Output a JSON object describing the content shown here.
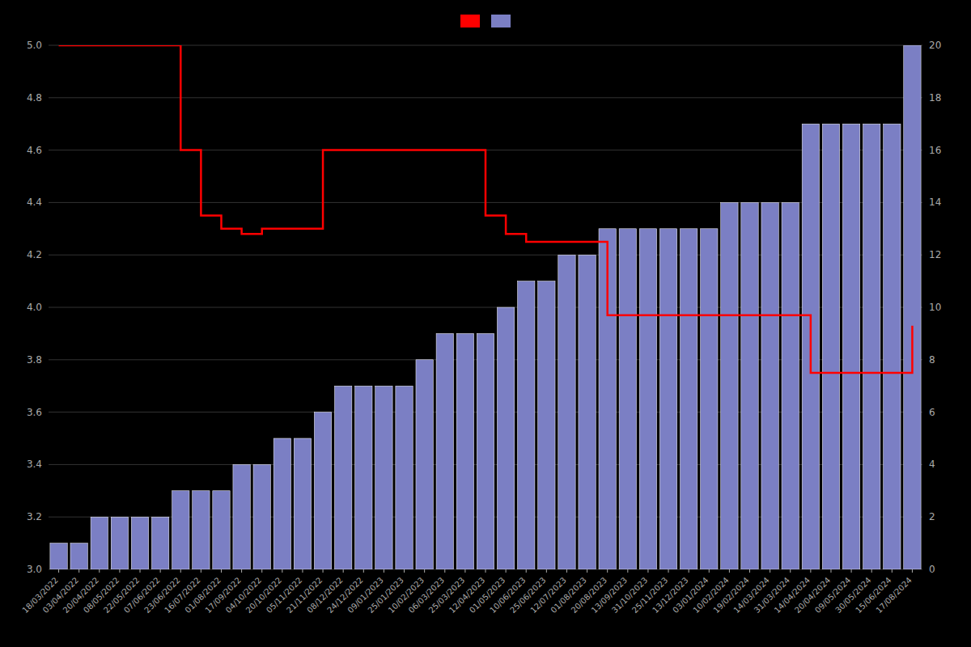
{
  "chart_data": {
    "type": "bar",
    "categories": [
      "18/03/2022",
      "03/04/2022",
      "20/04/2022",
      "08/05/2022",
      "22/05/2022",
      "07/06/2022",
      "23/06/2022",
      "16/07/2022",
      "01/08/2022",
      "17/09/2022",
      "04/10/2022",
      "20/10/2022",
      "05/11/2022",
      "21/11/2022",
      "08/12/2022",
      "24/12/2022",
      "09/01/2023",
      "25/01/2023",
      "10/02/2023",
      "06/03/2023",
      "25/03/2023",
      "12/04/2023",
      "01/05/2023",
      "10/06/2023",
      "25/06/2023",
      "12/07/2023",
      "01/08/2023",
      "20/08/2023",
      "13/09/2023",
      "31/10/2023",
      "25/11/2023",
      "13/12/2023",
      "03/01/2024",
      "10/02/2024",
      "19/02/2024",
      "14/03/2024",
      "31/03/2024",
      "14/04/2024",
      "20/04/2024",
      "09/05/2024",
      "30/05/2024",
      "15/06/2024",
      "17/08/2024"
    ],
    "series": [
      {
        "type": "line",
        "color": "#ff0000",
        "line_style": "step",
        "values": [
          5.0,
          5.0,
          5.0,
          5.0,
          5.0,
          5.0,
          4.6,
          4.35,
          4.3,
          4.28,
          4.3,
          4.3,
          4.3,
          4.6,
          4.6,
          4.6,
          4.6,
          4.6,
          4.6,
          4.6,
          4.6,
          4.35,
          4.28,
          4.25,
          4.25,
          4.25,
          4.25,
          3.97,
          3.97,
          3.97,
          3.97,
          3.97,
          3.97,
          3.97,
          3.97,
          3.97,
          3.97,
          3.75,
          3.75,
          3.75,
          3.75,
          3.75,
          3.93
        ]
      },
      {
        "type": "bar",
        "color": "#7b7fc4",
        "axis": "y2",
        "values": [
          1,
          1,
          2,
          2,
          2,
          2,
          3,
          3,
          3,
          4,
          4,
          5,
          5,
          6,
          7,
          7,
          7,
          7,
          8,
          9,
          9,
          9,
          10,
          11,
          11,
          12,
          12,
          13,
          13,
          13,
          13,
          13,
          13,
          14,
          14,
          14,
          14,
          17,
          17,
          17,
          17,
          17,
          20
        ]
      }
    ],
    "ylim": [
      3.0,
      5.0
    ],
    "yticks": [
      {
        "value": 3.0,
        "label": "3.0"
      },
      3.2,
      3.4,
      3.6,
      3.8,
      {
        "value": 4.0,
        "label": "4.0"
      },
      4.2,
      4.4,
      4.6,
      4.8,
      {
        "value": 5.0,
        "label": "5.0"
      }
    ],
    "y2lim": [
      0,
      20
    ],
    "y2ticks": [
      0,
      2,
      4,
      6,
      8,
      10,
      12,
      14,
      16,
      18,
      20
    ],
    "grid": true,
    "legend": "top"
  }
}
